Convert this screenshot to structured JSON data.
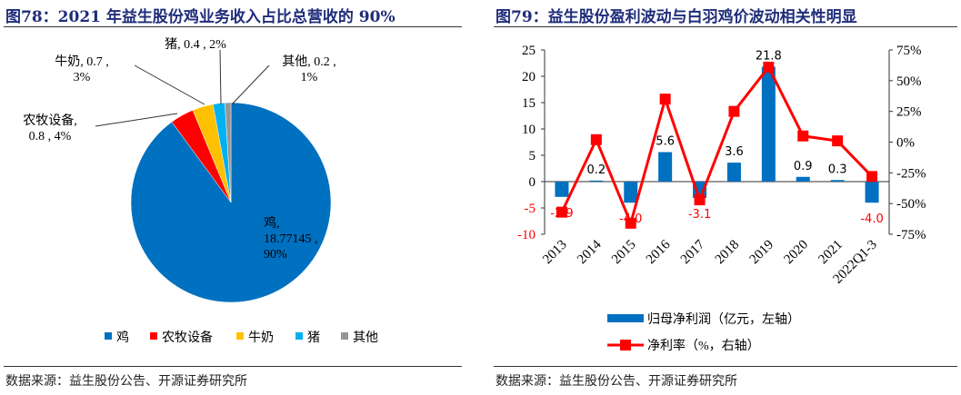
{
  "left": {
    "title": "图78：2021 年益生股份鸡业务收入占比总营收的 90%",
    "source": "数据来源：益生股份公告、开源证券研究所"
  },
  "right": {
    "title": "图79：益生股份盈利波动与白羽鸡价波动相关性明显",
    "source": "数据来源：益生股份公告、开源证券研究所"
  },
  "chart_data": [
    {
      "type": "pie",
      "title": "",
      "slices": [
        {
          "name": "鸡",
          "value": 18.77145,
          "pct": "90%",
          "label": "鸡,\n18.77145 ,\n90%",
          "color": "#0070c0"
        },
        {
          "name": "农牧设备",
          "value": 0.8,
          "pct": "4%",
          "label": "农牧设备,\n0.8 , 4%",
          "color": "#ff0000"
        },
        {
          "name": "牛奶",
          "value": 0.7,
          "pct": "3%",
          "label": "牛奶, 0.7 ,\n3%",
          "color": "#ffc000"
        },
        {
          "name": "猪",
          "value": 0.4,
          "pct": "2%",
          "label": "猪, 0.4 , 2%",
          "color": "#00b0f0"
        },
        {
          "name": "其他",
          "value": 0.2,
          "pct": "1%",
          "label": "其他, 0.2 ,\n1%",
          "color": "#969696"
        }
      ],
      "legend_position": "bottom"
    },
    {
      "type": "bar+line",
      "categories": [
        "2013",
        "2014",
        "2015",
        "2016",
        "2017",
        "2018",
        "2019",
        "2020",
        "2021",
        "2022Q1-3"
      ],
      "series": [
        {
          "name": "归母净利润（亿元，左轴）",
          "type": "bar",
          "axis": "left",
          "color": "#0070c0",
          "values": [
            -2.9,
            0.2,
            -4.0,
            5.6,
            -3.1,
            3.6,
            21.8,
            0.9,
            0.3,
            -4.0
          ],
          "labels": [
            "-2.9",
            "0.2",
            "-4.0",
            "5.6",
            "-3.1",
            "3.6",
            "21.8",
            "0.9",
            "0.3",
            "-4.0"
          ]
        },
        {
          "name": "净利率（%，右轴）",
          "type": "line",
          "axis": "right",
          "color": "#ff0000",
          "values": [
            -57,
            2,
            -66,
            35,
            -47,
            25,
            61,
            5,
            1,
            -28
          ]
        }
      ],
      "ylim_left": [
        -10,
        25
      ],
      "yticks_left": [
        "25",
        "20",
        "15",
        "10",
        "5",
        "0",
        "-5",
        "-10"
      ],
      "ylim_right": [
        -75,
        75
      ],
      "yticks_right": [
        "75%",
        "50%",
        "25%",
        "0%",
        "-25%",
        "-50%",
        "-75%"
      ],
      "grid": false,
      "legend_position": "bottom"
    }
  ]
}
